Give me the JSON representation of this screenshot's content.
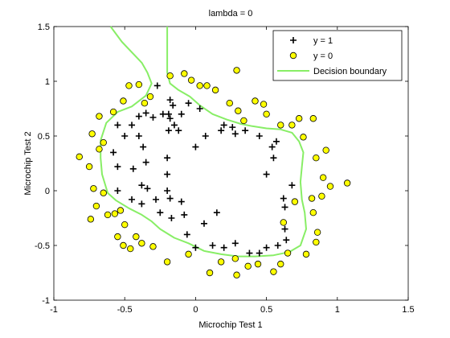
{
  "chart_data": {
    "type": "scatter",
    "title": "lambda = 0",
    "xlabel": "Microchip Test 1",
    "ylabel": "Microchip Test 2",
    "xlim": [
      -1,
      1.5
    ],
    "ylim": [
      -1,
      1.5
    ],
    "xticks": [
      -1,
      -0.5,
      0,
      0.5,
      1,
      1.5
    ],
    "xtick_labels": [
      "-1",
      "-0.5",
      "0",
      "0.5",
      "1",
      "1.5"
    ],
    "yticks": [
      -1,
      -0.5,
      0,
      0.5,
      1,
      1.5
    ],
    "ytick_labels": [
      "-1",
      "-0.5",
      "0",
      "0.5",
      "1",
      "1.5"
    ],
    "grid": false,
    "legend_position": "top-right",
    "series": [
      {
        "name": "y = 1",
        "marker": "plus",
        "color": "#000000",
        "points": [
          [
            -0.27,
            0.96
          ],
          [
            -0.55,
            0.6
          ],
          [
            -0.45,
            0.6
          ],
          [
            -0.4,
            0.68
          ],
          [
            -0.35,
            0.71
          ],
          [
            -0.3,
            0.67
          ],
          [
            -0.23,
            0.7
          ],
          [
            -0.19,
            0.7
          ],
          [
            -0.18,
            0.66
          ],
          [
            -0.15,
            0.6
          ],
          [
            -0.1,
            0.7
          ],
          [
            -0.05,
            0.8
          ],
          [
            0.03,
            0.75
          ],
          [
            -0.16,
            0.78
          ],
          [
            -0.18,
            0.83
          ],
          [
            -0.19,
            0.55
          ],
          [
            -0.12,
            0.55
          ],
          [
            -0.4,
            0.5
          ],
          [
            -0.37,
            0.4
          ],
          [
            -0.5,
            0.5
          ],
          [
            -0.58,
            0.35
          ],
          [
            -0.35,
            0.26
          ],
          [
            -0.55,
            0.22
          ],
          [
            -0.44,
            0.2
          ],
          [
            -0.2,
            0.3
          ],
          [
            -0.2,
            0.15
          ],
          [
            -0.38,
            0.05
          ],
          [
            -0.34,
            0.02
          ],
          [
            -0.2,
            0.0
          ],
          [
            -0.18,
            -0.07
          ],
          [
            -0.55,
            0.0
          ],
          [
            -0.45,
            -0.08
          ],
          [
            -0.38,
            -0.12
          ],
          [
            -0.28,
            -0.08
          ],
          [
            -0.25,
            -0.2
          ],
          [
            -0.17,
            -0.25
          ],
          [
            -0.08,
            -0.22
          ],
          [
            -0.06,
            -0.4
          ],
          [
            0.0,
            -0.52
          ],
          [
            0.12,
            -0.5
          ],
          [
            0.2,
            -0.52
          ],
          [
            0.28,
            -0.48
          ],
          [
            0.38,
            -0.57
          ],
          [
            0.45,
            -0.57
          ],
          [
            0.5,
            -0.52
          ],
          [
            0.58,
            -0.5
          ],
          [
            0.64,
            -0.45
          ],
          [
            0.63,
            -0.35
          ],
          [
            0.63,
            -0.15
          ],
          [
            0.62,
            -0.07
          ],
          [
            0.68,
            0.05
          ],
          [
            0.5,
            0.15
          ],
          [
            0.55,
            0.3
          ],
          [
            0.54,
            0.4
          ],
          [
            0.57,
            0.45
          ],
          [
            0.45,
            0.5
          ],
          [
            0.35,
            0.55
          ],
          [
            0.28,
            0.52
          ],
          [
            0.26,
            0.58
          ],
          [
            0.2,
            0.6
          ],
          [
            0.18,
            0.55
          ],
          [
            0.07,
            0.5
          ],
          [
            0.0,
            0.4
          ],
          [
            0.15,
            -0.2
          ],
          [
            -0.1,
            -0.1
          ],
          [
            0.06,
            -0.3
          ]
        ]
      },
      {
        "name": "y = 0",
        "marker": "circle",
        "color": "#ffff00",
        "points": [
          [
            -0.82,
            0.31
          ],
          [
            -0.68,
            0.38
          ],
          [
            -0.73,
            0.52
          ],
          [
            -0.68,
            0.68
          ],
          [
            -0.58,
            0.72
          ],
          [
            -0.51,
            0.82
          ],
          [
            -0.47,
            0.96
          ],
          [
            -0.4,
            0.97
          ],
          [
            -0.32,
            0.86
          ],
          [
            -0.18,
            1.05
          ],
          [
            -0.08,
            1.07
          ],
          [
            -0.03,
            1.01
          ],
          [
            0.03,
            0.96
          ],
          [
            0.08,
            0.96
          ],
          [
            0.14,
            0.92
          ],
          [
            0.24,
            0.8
          ],
          [
            0.3,
            0.73
          ],
          [
            0.34,
            0.64
          ],
          [
            0.42,
            0.82
          ],
          [
            0.48,
            0.79
          ],
          [
            0.5,
            0.7
          ],
          [
            0.6,
            0.6
          ],
          [
            0.68,
            0.6
          ],
          [
            0.73,
            0.66
          ],
          [
            0.83,
            0.66
          ],
          [
            0.76,
            0.49
          ],
          [
            0.92,
            0.37
          ],
          [
            0.85,
            0.3
          ],
          [
            0.9,
            0.12
          ],
          [
            0.95,
            0.04
          ],
          [
            1.07,
            0.07
          ],
          [
            0.89,
            -0.05
          ],
          [
            0.82,
            -0.07
          ],
          [
            0.83,
            -0.2
          ],
          [
            0.86,
            -0.38
          ],
          [
            0.85,
            -0.47
          ],
          [
            0.78,
            -0.58
          ],
          [
            0.65,
            -0.57
          ],
          [
            0.6,
            -0.67
          ],
          [
            0.55,
            -0.74
          ],
          [
            0.44,
            -0.67
          ],
          [
            0.37,
            -0.69
          ],
          [
            0.29,
            -0.77
          ],
          [
            0.28,
            -0.62
          ],
          [
            0.18,
            -0.65
          ],
          [
            0.1,
            -0.75
          ],
          [
            -0.05,
            -0.58
          ],
          [
            -0.2,
            -0.65
          ],
          [
            -0.3,
            -0.51
          ],
          [
            -0.38,
            -0.48
          ],
          [
            -0.42,
            -0.42
          ],
          [
            -0.5,
            -0.31
          ],
          [
            -0.57,
            -0.21
          ],
          [
            -0.62,
            -0.22
          ],
          [
            -0.74,
            -0.26
          ],
          [
            -0.7,
            -0.14
          ],
          [
            -0.65,
            -0.02
          ],
          [
            -0.72,
            0.02
          ],
          [
            -0.55,
            -0.42
          ],
          [
            -0.51,
            -0.5
          ],
          [
            -0.36,
            0.8
          ],
          [
            0.29,
            1.1
          ],
          [
            -0.65,
            0.44
          ],
          [
            -0.75,
            0.22
          ],
          [
            0.7,
            -0.1
          ],
          [
            -0.46,
            -0.53
          ],
          [
            -0.53,
            -0.18
          ],
          [
            0.62,
            -0.29
          ]
        ]
      },
      {
        "name": "Decision boundary",
        "marker": "line",
        "color": "#88ee66",
        "segments": [
          [
            [
              -0.6,
              1.5
            ],
            [
              -0.52,
              1.36
            ],
            [
              -0.38,
              1.17
            ],
            [
              -0.34,
              1.08
            ],
            [
              -0.31,
              0.98
            ],
            [
              -0.35,
              0.87
            ],
            [
              -0.45,
              0.77
            ],
            [
              -0.55,
              0.72
            ],
            [
              -0.63,
              0.62
            ],
            [
              -0.67,
              0.46
            ],
            [
              -0.67,
              0.3
            ],
            [
              -0.66,
              0.15
            ],
            [
              -0.62,
              -0.02
            ],
            [
              -0.56,
              -0.09
            ],
            [
              -0.47,
              -0.16
            ],
            [
              -0.38,
              -0.22
            ],
            [
              -0.31,
              -0.28
            ],
            [
              -0.25,
              -0.35
            ],
            [
              -0.15,
              -0.43
            ],
            [
              -0.05,
              -0.48
            ],
            [
              0.06,
              -0.55
            ],
            [
              0.18,
              -0.58
            ],
            [
              0.3,
              -0.6
            ],
            [
              0.42,
              -0.6
            ],
            [
              0.55,
              -0.59
            ],
            [
              0.66,
              -0.56
            ],
            [
              0.74,
              -0.5
            ],
            [
              0.78,
              -0.35
            ],
            [
              0.77,
              -0.2
            ],
            [
              0.75,
              -0.08
            ],
            [
              0.74,
              0.08
            ],
            [
              0.75,
              0.22
            ],
            [
              0.76,
              0.35
            ],
            [
              0.73,
              0.45
            ],
            [
              0.68,
              0.53
            ],
            [
              0.6,
              0.56
            ],
            [
              0.5,
              0.57
            ],
            [
              0.4,
              0.59
            ],
            [
              0.32,
              0.61
            ],
            [
              0.22,
              0.65
            ],
            [
              0.12,
              0.7
            ],
            [
              0.03,
              0.78
            ],
            [
              -0.04,
              0.86
            ],
            [
              -0.12,
              0.92
            ],
            [
              -0.18,
              0.98
            ],
            [
              -0.2,
              1.08
            ],
            [
              -0.2,
              1.2
            ],
            [
              -0.2,
              1.35
            ],
            [
              -0.2,
              1.5
            ]
          ]
        ]
      }
    ]
  }
}
